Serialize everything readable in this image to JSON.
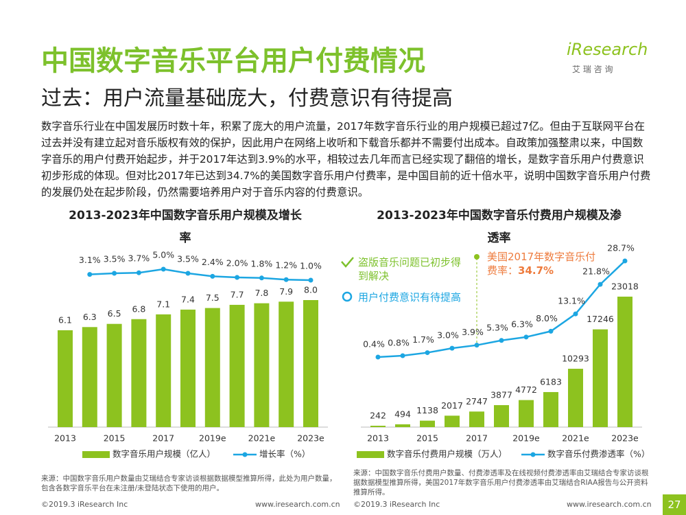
{
  "header": {
    "title": "中国数字音乐平台用户付费情况",
    "subtitle": "过去：用户流量基础庞大，付费意识有待提高",
    "logo": "iResearch",
    "logo_sub": "艾 瑞 咨 询"
  },
  "body": "数字音乐行业在中国发展历时数十年，积累了庞大的用户流量，2017年数字音乐行业的用户规模已超过7亿。但由于互联网平台在过去并没有建立起对音乐版权有效的保护，因此用户在网络上收听和下载音乐都并不需要付出成本。自政策加强整肃以来，中国数字音乐的用户付费开始起步，并于2017年达到3.9%的水平，相较过去几年而言已经实现了翻倍的增长，是数字音乐用户付费意识初步形成的体现。但对比2017年已达到34.7%的美国数字音乐用户付费率，是中国目前的近十倍水平，说明中国数字音乐用户付费的发展仍处在起步阶段，仍然需要培养用户对于音乐内容的付费意识。",
  "chart_data": [
    {
      "type": "combo",
      "title": "2013-2023年中国数字音乐用户规模及增长率",
      "categories": [
        "2013",
        null,
        "2015",
        null,
        "2017",
        null,
        "2019e",
        null,
        "2021e",
        null,
        "2023e"
      ],
      "series": [
        {
          "name": "数字音乐用户规模（亿人）",
          "type": "bar",
          "color": "#8dc21f",
          "values": [
            6.1,
            6.3,
            6.5,
            6.8,
            7.1,
            7.4,
            7.5,
            7.7,
            7.8,
            7.9,
            8.0
          ],
          "value_labels": [
            "6.1",
            "6.3",
            "6.5",
            "6.8",
            "7.1",
            "7.4",
            "7.5",
            "7.7",
            "7.8",
            "7.9",
            "8.0"
          ]
        },
        {
          "name": "增长率（%）",
          "type": "line",
          "color": "#1ca6e2",
          "values": [
            null,
            3.1,
            3.5,
            3.7,
            5.0,
            3.5,
            2.4,
            2.0,
            1.8,
            1.2,
            1.0
          ],
          "value_labels": [
            null,
            "3.1%",
            "3.5%",
            "3.7%",
            "5.0%",
            "3.5%",
            "2.4%",
            "2.0%",
            "1.8%",
            "1.2%",
            "1.0%"
          ]
        }
      ],
      "source": "来源：中国数字音乐用户数量由艾瑞结合专家访谈根据数据模型推算所得，此处为用户数量，包含各数字音乐平台在未注册/未登陆状态下使用的用户。"
    },
    {
      "type": "combo",
      "title": "2013-2023年中国数字音乐付费用户规模及渗透率",
      "categories": [
        "2013",
        null,
        "2015",
        null,
        "2017",
        null,
        "2019e",
        null,
        "2021e",
        null,
        "2023e"
      ],
      "series": [
        {
          "name": "数字音乐付费用户规模（万人）",
          "type": "bar",
          "color": "#8dc21f",
          "values": [
            242,
            494,
            1138,
            2017,
            2747,
            3877,
            4772,
            6183,
            10293,
            17246,
            23018
          ]
        },
        {
          "name": "数字音乐付费渗透率（%）",
          "type": "line",
          "color": "#1ca6e2",
          "values": [
            0.4,
            0.8,
            1.7,
            3.0,
            3.9,
            5.3,
            6.3,
            8.0,
            13.1,
            21.8,
            28.7
          ],
          "value_labels": [
            "0.4%",
            "0.8%",
            "1.7%",
            "3.0%",
            "3.9%",
            "5.3%",
            "6.3%",
            "8.0%",
            "13.1%",
            "21.8%",
            "28.7%"
          ]
        }
      ],
      "annotations": [
        {
          "text": "盗版音乐问题已初步得到解决"
        },
        {
          "text": "用户付费意识有待提高"
        },
        {
          "text": "美国2017年数字音乐付费率：",
          "highlight": "34.7%"
        }
      ],
      "source": "来源：中国数字音乐付费用户数量、付费渗透率及在线视频付费渗透率由艾瑞结合专家访谈根据数据模型推算所得，美国2017年数字音乐用户付费渗透率由艾瑞结合RIAA报告与公开资料推算所得。"
    }
  ],
  "footer": [
    {
      "copyright": "©2019.3 iResearch Inc",
      "url": "www.iresearch.com.cn"
    },
    {
      "copyright": "©2019.3 iResearch Inc",
      "url": "www.iresearch.com.cn"
    }
  ],
  "page": "27"
}
